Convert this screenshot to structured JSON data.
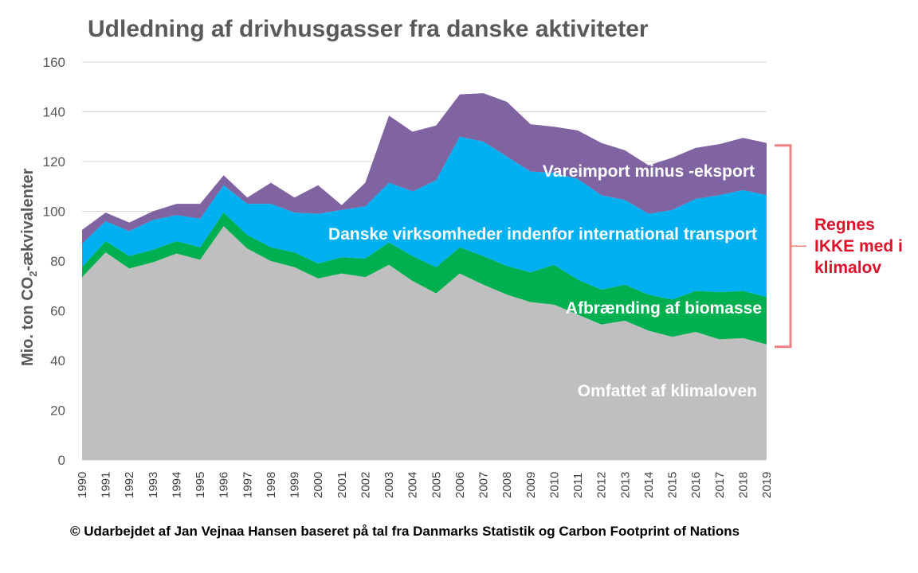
{
  "chart_data": {
    "type": "area",
    "title": "Udledning af drivhusgasser fra danske aktiviteter",
    "ylabel_main": "Mio. ton CO",
    "ylabel_sub": "2",
    "ylabel_end": "-ækvivalenter",
    "xlabel": "",
    "ylim": [
      0,
      160
    ],
    "yticks": [
      "0",
      "20",
      "40",
      "60",
      "80",
      "100",
      "120",
      "140",
      "160"
    ],
    "grid": true,
    "stacked": true,
    "x": [
      "1990",
      "1991",
      "1992",
      "1993",
      "1994",
      "1995",
      "1996",
      "1997",
      "1998",
      "1999",
      "2000",
      "2001",
      "2002",
      "2003",
      "2004",
      "2005",
      "2006",
      "2007",
      "2008",
      "2009",
      "2010",
      "2011",
      "2012",
      "2013",
      "2014",
      "2015",
      "2016",
      "2017",
      "2018",
      "2019"
    ],
    "series": [
      {
        "name": "Omfattet af klimaloven",
        "color": "#bfbfbf",
        "values": [
          73.5,
          83.5,
          77,
          79.5,
          83,
          80.5,
          94,
          85,
          80,
          77.5,
          73,
          75,
          73.5,
          78.5,
          72,
          67,
          75,
          70.5,
          66.5,
          63.5,
          62.5,
          58.5,
          54.5,
          56,
          52,
          49.5,
          51.5,
          48.5,
          49,
          46.5
        ]
      },
      {
        "name": "Afbrænding af biomasse",
        "color": "#00b050",
        "values": [
          4,
          4.5,
          5,
          5,
          5,
          5,
          5.5,
          5.5,
          5.5,
          6,
          6,
          6.5,
          7.5,
          9,
          10,
          10.5,
          10.5,
          11.5,
          11.5,
          12,
          16,
          14,
          14,
          14.5,
          14.5,
          15,
          16.5,
          19,
          19,
          19
        ]
      },
      {
        "name": "Danske virksomheder indenfor international transport",
        "color": "#00b0f0",
        "values": [
          9.5,
          8,
          10,
          12,
          10.5,
          11.5,
          11,
          12.5,
          17.5,
          16,
          20,
          19,
          21,
          24,
          26,
          35,
          44.5,
          46,
          44,
          40.5,
          37,
          40.5,
          38,
          34,
          32.5,
          36,
          37,
          39,
          40.5,
          41
        ]
      },
      {
        "name": "Vareimport minus -eksport",
        "color": "#8064a2",
        "values": [
          5.5,
          3.5,
          3.5,
          3.5,
          4.5,
          6,
          4,
          2.5,
          8.5,
          6,
          11.5,
          2,
          9.5,
          27,
          24,
          22,
          17,
          19.5,
          22,
          19,
          18.5,
          19.5,
          21,
          20,
          19.5,
          21,
          20.5,
          20.5,
          21,
          21
        ]
      }
    ],
    "annotations": {
      "bracket_text": [
        "Regnes",
        "IKKE med i",
        "klimalov"
      ],
      "bracket_range": [
        45.5,
        126.5
      ],
      "bracket_color": "#f08080",
      "text_color": "#e0102a"
    }
  },
  "footer": {
    "credit": "© Udarbejdet af Jan Vejnaa Hansen baseret på tal fra Danmarks Statistik og Carbon Footprint of Nations"
  }
}
